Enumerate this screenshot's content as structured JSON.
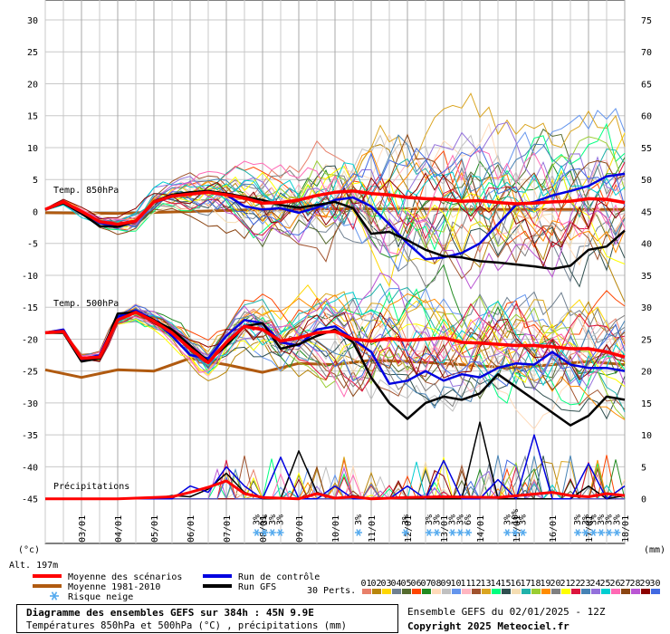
{
  "chart_data": {
    "type": "line",
    "title": "Diagramme des ensembles GEFS sur 384h : 45N 9.9E",
    "subtitle": "Températures 850hPa et 500hPa (°C) , précipitations (mm)",
    "run_info": "Ensemble GEFS du 02/01/2025 - 12Z",
    "copyright": "Copyright 2025 Meteociel.fr",
    "altitude_label": "Alt. 197m",
    "left_unit_label": "(°c)",
    "right_unit_label": "(mm)",
    "panel_labels": {
      "t850": "Temp. 850hPa",
      "t500": "Temp. 500hPa",
      "precip": "Précipitations"
    },
    "x_ticks": [
      "03/01",
      "04/01",
      "05/01",
      "06/01",
      "07/01",
      "08/01",
      "09/01",
      "10/01",
      "11/01",
      "12/01",
      "13/01",
      "14/01",
      "15/01",
      "16/01",
      "17/01",
      "18/01"
    ],
    "x_range_hours": [
      0,
      384
    ],
    "y_left_ticks": [
      30,
      25,
      20,
      15,
      10,
      5,
      0,
      -5,
      -10,
      -15,
      -20,
      -25,
      -30,
      -35,
      -40,
      -45
    ],
    "y_right_ticks": [
      75,
      70,
      65,
      60,
      55,
      50,
      45,
      40,
      35,
      30,
      25,
      20,
      15,
      10,
      5,
      0
    ],
    "legend": {
      "mean": "Moyenne des scénarios",
      "climo": "Moyenne 1981-2010",
      "snow": "Risque neige",
      "control": "Run de contrôle",
      "gfs": "Run GFS",
      "perts": "30 Perts."
    },
    "colors": {
      "mean": "#ff0000",
      "climo": "#b05a10",
      "control": "#0000e0",
      "gfs": "#000000"
    },
    "member_ids": [
      "01",
      "02",
      "03",
      "04",
      "05",
      "06",
      "07",
      "08",
      "09",
      "10",
      "11",
      "12",
      "13",
      "14",
      "15",
      "16",
      "17",
      "18",
      "19",
      "20",
      "21",
      "22",
      "23",
      "24",
      "25",
      "26",
      "27",
      "28",
      "29",
      "30"
    ],
    "member_colors": [
      "#e8806a",
      "#b8860b",
      "#ffd700",
      "#708090",
      "#556b2f",
      "#ff4500",
      "#228b22",
      "#ffdab9",
      "#c0c0c0",
      "#6495ed",
      "#ffb6c1",
      "#a0522d",
      "#daa520",
      "#00ff7f",
      "#2f4f4f",
      "#f5deb3",
      "#20b2aa",
      "#9acd32",
      "#ff8c00",
      "#808080",
      "#ffff00",
      "#dc143c",
      "#4682b4",
      "#9370db",
      "#00ced1",
      "#ff69b4",
      "#8b4513",
      "#ba55d3",
      "#8b0000",
      "#4169e1"
    ],
    "snow_markers": [
      {
        "hours": 162,
        "pct": "3%"
      },
      {
        "hours": 168,
        "pct": "3%"
      },
      {
        "hours": 174,
        "pct": "3%"
      },
      {
        "hours": 180,
        "pct": "3%"
      },
      {
        "hours": 240,
        "pct": "3%"
      },
      {
        "hours": 276,
        "pct": "3%"
      },
      {
        "hours": 294,
        "pct": "3%"
      },
      {
        "hours": 300,
        "pct": "3%"
      },
      {
        "hours": 312,
        "pct": "3%"
      },
      {
        "hours": 318,
        "pct": "3%"
      },
      {
        "hours": 324,
        "pct": "6%"
      },
      {
        "hours": 354,
        "pct": "3%"
      },
      {
        "hours": 360,
        "pct": "10%"
      },
      {
        "hours": 366,
        "pct": "3%"
      },
      {
        "hours": 408,
        "pct": "3%"
      },
      {
        "hours": 414,
        "pct": "3%"
      },
      {
        "hours": 420,
        "pct": "3%"
      },
      {
        "hours": 426,
        "pct": "3%"
      },
      {
        "hours": 432,
        "pct": "3%"
      },
      {
        "hours": 438,
        "pct": "3%"
      }
    ],
    "series": [
      {
        "key": "mean850",
        "name": "Moyenne des scénarios",
        "level": "t850",
        "x": [
          0,
          12,
          24,
          36,
          48,
          60,
          72,
          84,
          96,
          108,
          120,
          132,
          144,
          156,
          168,
          180,
          192,
          204,
          216,
          228,
          240,
          252,
          264,
          276,
          288,
          300,
          312,
          324,
          336,
          348,
          360,
          372,
          384
        ],
        "values": [
          0.3,
          1.5,
          0.0,
          -1.6,
          -2.0,
          -1.5,
          1.5,
          2.4,
          2.7,
          3.0,
          2.6,
          2.1,
          1.3,
          1.4,
          1.8,
          2.5,
          3.0,
          3.2,
          2.8,
          2.6,
          2.2,
          2.0,
          1.9,
          1.6,
          1.7,
          1.4,
          1.2,
          1.3,
          1.5,
          1.6,
          2.0,
          1.9,
          1.4
        ]
      },
      {
        "key": "climo850",
        "name": "Moyenne 1981-2010",
        "level": "t850",
        "x": [
          0,
          48,
          96,
          144,
          192,
          240,
          288,
          336,
          384
        ],
        "values": [
          -0.2,
          -0.3,
          0.0,
          0.3,
          0.4,
          0.4,
          0.3,
          0.3,
          0.3
        ]
      },
      {
        "key": "control850",
        "name": "Run de contrôle",
        "level": "t850",
        "x": [
          0,
          12,
          24,
          36,
          48,
          60,
          72,
          84,
          96,
          108,
          120,
          132,
          144,
          156,
          168,
          180,
          192,
          204,
          216,
          228,
          240,
          252,
          264,
          276,
          288,
          300,
          312,
          324,
          336,
          348,
          360,
          372,
          384
        ],
        "values": [
          0.3,
          1.4,
          0.0,
          -1.8,
          -2.2,
          -1.6,
          1.4,
          2.3,
          2.8,
          3.2,
          2.6,
          0.8,
          0.3,
          0.5,
          -0.2,
          0.6,
          1.8,
          2.2,
          0.8,
          -2.0,
          -5.0,
          -7.5,
          -7.2,
          -6.5,
          -5.0,
          -2.0,
          1.0,
          1.5,
          2.5,
          3.2,
          4.0,
          5.5,
          5.9
        ]
      },
      {
        "key": "gfs850",
        "name": "Run GFS",
        "level": "t850",
        "x": [
          0,
          12,
          24,
          36,
          48,
          60,
          72,
          84,
          96,
          108,
          120,
          132,
          144,
          156,
          168,
          180,
          192,
          204,
          216,
          228,
          240,
          252,
          264,
          276,
          288,
          300,
          312,
          324,
          336,
          348,
          360,
          372,
          384
        ],
        "values": [
          0.3,
          1.3,
          -0.3,
          -2.3,
          -2.4,
          -1.5,
          1.6,
          2.6,
          3.0,
          3.2,
          2.8,
          2.3,
          1.8,
          1.0,
          0.6,
          1.0,
          1.5,
          0.5,
          -3.5,
          -3.2,
          -4.5,
          -6.0,
          -7.0,
          -7.2,
          -7.8,
          -8.0,
          -8.3,
          -8.6,
          -9.0,
          -8.5,
          -6.0,
          -5.5,
          -3.0
        ]
      },
      {
        "key": "mean500",
        "name": "Moyenne des scénarios",
        "level": "t500",
        "x": [
          0,
          12,
          24,
          36,
          48,
          60,
          72,
          84,
          96,
          108,
          120,
          132,
          144,
          156,
          168,
          180,
          192,
          204,
          216,
          228,
          240,
          252,
          264,
          276,
          288,
          300,
          312,
          324,
          336,
          348,
          360,
          372,
          384
        ],
        "values": [
          -19.0,
          -18.8,
          -23.0,
          -22.8,
          -17.0,
          -15.8,
          -17.2,
          -19.0,
          -21.5,
          -23.7,
          -20.5,
          -18.0,
          -18.5,
          -20.3,
          -19.8,
          -19.0,
          -18.8,
          -20.0,
          -20.3,
          -19.9,
          -20.2,
          -20.0,
          -19.8,
          -20.5,
          -20.6,
          -20.8,
          -21.0,
          -21.0,
          -21.2,
          -21.5,
          -21.5,
          -22.0,
          -22.8
        ]
      },
      {
        "key": "climo500",
        "name": "Moyenne 1981-2010",
        "level": "t500",
        "x": [
          0,
          24,
          48,
          72,
          96,
          120,
          144,
          168,
          192,
          216,
          240,
          264,
          288,
          312,
          336,
          360,
          384
        ],
        "values": [
          -24.8,
          -26.0,
          -24.8,
          -25.0,
          -23.0,
          -24.0,
          -25.2,
          -23.8,
          -24.0,
          -23.3,
          -23.5,
          -23.8,
          -24.2,
          -24.5,
          -24.0,
          -23.5,
          -24.0
        ]
      },
      {
        "key": "control500",
        "name": "Run de contrôle",
        "level": "t500",
        "x": [
          0,
          12,
          24,
          36,
          48,
          60,
          72,
          84,
          96,
          108,
          120,
          132,
          144,
          156,
          168,
          180,
          192,
          204,
          216,
          228,
          240,
          252,
          264,
          276,
          288,
          300,
          312,
          324,
          336,
          348,
          360,
          372,
          384
        ],
        "values": [
          -19.0,
          -18.5,
          -23.2,
          -22.5,
          -16.5,
          -15.5,
          -17.0,
          -19.5,
          -22.5,
          -23.0,
          -19.5,
          -17.0,
          -17.5,
          -20.5,
          -21.0,
          -18.5,
          -18.0,
          -20.0,
          -22.0,
          -27.0,
          -26.5,
          -25.0,
          -26.5,
          -25.5,
          -26.0,
          -24.5,
          -23.8,
          -24.0,
          -22.0,
          -24.0,
          -24.5,
          -24.5,
          -25.0
        ]
      },
      {
        "key": "gfs500",
        "name": "Run GFS",
        "level": "t500",
        "x": [
          0,
          12,
          24,
          36,
          48,
          60,
          72,
          84,
          96,
          108,
          120,
          132,
          144,
          156,
          168,
          180,
          192,
          204,
          216,
          228,
          240,
          252,
          264,
          276,
          288,
          300,
          312,
          324,
          336,
          348,
          360,
          372,
          384
        ],
        "values": [
          -19.0,
          -19.0,
          -23.5,
          -23.0,
          -16.0,
          -15.8,
          -17.0,
          -18.5,
          -21.0,
          -23.5,
          -21.0,
          -18.0,
          -17.5,
          -21.5,
          -20.8,
          -19.5,
          -18.5,
          -20.5,
          -26.0,
          -30.0,
          -32.5,
          -30.0,
          -29.0,
          -29.5,
          -28.5,
          -25.5,
          -27.5,
          -29.5,
          -31.5,
          -33.5,
          -32.0,
          -29.0,
          -29.5
        ]
      },
      {
        "key": "meanPrecip",
        "name": "Moyenne des scénarios",
        "level": "precip",
        "x": [
          0,
          48,
          84,
          96,
          108,
          120,
          132,
          144,
          168,
          180,
          192,
          204,
          216,
          240,
          264,
          300,
          336,
          348,
          360,
          372,
          384
        ],
        "values": [
          0,
          0,
          0.3,
          1.0,
          1.8,
          2.8,
          0.8,
          0.2,
          0,
          0.8,
          0.1,
          0.3,
          0,
          0.2,
          0.3,
          0.2,
          1.0,
          0.5,
          0.3,
          0.8,
          0.5
        ]
      },
      {
        "key": "controlPrecip",
        "name": "Run de contrôle",
        "level": "precip",
        "x": [
          0,
          60,
          84,
          96,
          108,
          120,
          132,
          144,
          156,
          168,
          180,
          192,
          204,
          216,
          228,
          240,
          252,
          264,
          276,
          288,
          300,
          312,
          324,
          336,
          348,
          360,
          372,
          384
        ],
        "values": [
          0,
          0,
          0,
          2.0,
          1.0,
          5.0,
          2.0,
          0,
          6.5,
          0,
          0,
          2.0,
          0,
          0,
          0,
          2.0,
          0,
          6.0,
          0,
          0,
          3.0,
          0,
          10.0,
          0,
          0,
          5.5,
          0,
          2.0
        ]
      },
      {
        "key": "gfsPrecip",
        "name": "Run GFS",
        "level": "precip",
        "x": [
          0,
          48,
          72,
          84,
          96,
          108,
          120,
          132,
          144,
          156,
          168,
          180,
          192,
          204,
          216,
          228,
          240,
          252,
          264,
          276,
          288,
          300,
          312,
          324,
          336,
          348,
          360,
          372,
          384
        ],
        "values": [
          0,
          0,
          0,
          0.5,
          0.3,
          1.5,
          4.0,
          1.0,
          0,
          0,
          7.5,
          1.0,
          0,
          0.5,
          0,
          0,
          0,
          0,
          0,
          0,
          12.0,
          0,
          0,
          0,
          0,
          0,
          2.0,
          0,
          0.5
        ]
      }
    ]
  }
}
